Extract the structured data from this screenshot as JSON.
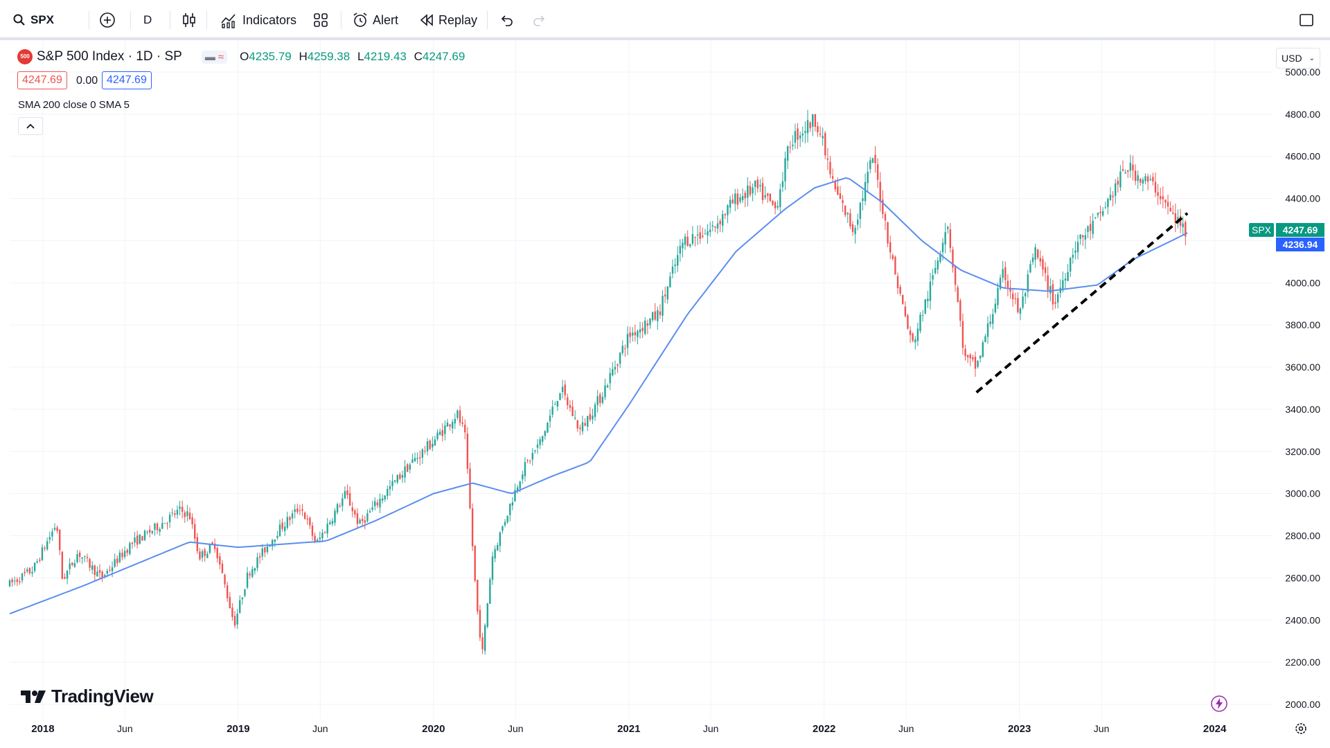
{
  "toolbar": {
    "symbol": "SPX",
    "interval": "D",
    "indicators_label": "Indicators",
    "alert_label": "Alert",
    "replay_label": "Replay"
  },
  "legend": {
    "title": "S&P 500 Index · 1D · SP",
    "badge": "500",
    "open_label": "O",
    "open": "4235.79",
    "high_label": "H",
    "high": "4259.38",
    "low_label": "L",
    "low": "4219.43",
    "close_label": "C",
    "close": "4247.69",
    "bid": "4247.69",
    "spread": "0.00",
    "ask": "4247.69",
    "indicator": "SMA 200 close 0 SMA 5"
  },
  "currency": "USD",
  "price_tags": {
    "symbol": "SPX",
    "last": "4247.69",
    "sma": "4236.94"
  },
  "branding": "TradingView",
  "colors": {
    "up": "#26a69a",
    "down": "#ef5350",
    "sma": "#5b8def",
    "trendline": "#000000",
    "price_tag_bg": "#089981",
    "sma_tag_bg": "#2962ff",
    "grid": "#f0f3fa",
    "accent_purple": "#9c27b0"
  },
  "chart_data": {
    "type": "line",
    "description_series": "candlestick",
    "y_ticks": [
      "5000.00",
      "4800.00",
      "4600.00",
      "4400.00",
      "4200.00",
      "4000.00",
      "3800.00",
      "3600.00",
      "3400.00",
      "3200.00",
      "3000.00",
      "2800.00",
      "2600.00",
      "2400.00",
      "2200.00",
      "2000.00"
    ],
    "ylim": [
      2000,
      5000
    ],
    "x_ticks": [
      {
        "label": "2018",
        "t": 2018.0,
        "bold": true
      },
      {
        "label": "Jun",
        "t": 2018.42,
        "bold": false
      },
      {
        "label": "2019",
        "t": 2019.0,
        "bold": true
      },
      {
        "label": "Jun",
        "t": 2019.42,
        "bold": false
      },
      {
        "label": "2020",
        "t": 2020.0,
        "bold": true
      },
      {
        "label": "Jun",
        "t": 2020.42,
        "bold": false
      },
      {
        "label": "2021",
        "t": 2021.0,
        "bold": true
      },
      {
        "label": "Jun",
        "t": 2021.42,
        "bold": false
      },
      {
        "label": "2022",
        "t": 2022.0,
        "bold": true
      },
      {
        "label": "Jun",
        "t": 2022.42,
        "bold": false
      },
      {
        "label": "2023",
        "t": 2023.0,
        "bold": true
      },
      {
        "label": "Jun",
        "t": 2023.42,
        "bold": false
      },
      {
        "label": "2024",
        "t": 2024.0,
        "bold": true
      }
    ],
    "xlim": [
      2017.83,
      2024.2
    ],
    "price_anchors": [
      [
        2017.83,
        2570
      ],
      [
        2017.95,
        2640
      ],
      [
        2018.07,
        2860
      ],
      [
        2018.1,
        2590
      ],
      [
        2018.18,
        2720
      ],
      [
        2018.3,
        2600
      ],
      [
        2018.45,
        2760
      ],
      [
        2018.55,
        2820
      ],
      [
        2018.7,
        2920
      ],
      [
        2018.75,
        2900
      ],
      [
        2018.8,
        2700
      ],
      [
        2018.88,
        2760
      ],
      [
        2018.98,
        2380
      ],
      [
        2019.05,
        2620
      ],
      [
        2019.2,
        2820
      ],
      [
        2019.32,
        2940
      ],
      [
        2019.4,
        2760
      ],
      [
        2019.55,
        3000
      ],
      [
        2019.62,
        2850
      ],
      [
        2019.75,
        3000
      ],
      [
        2019.88,
        3140
      ],
      [
        2020.0,
        3250
      ],
      [
        2020.12,
        3380
      ],
      [
        2020.16,
        3280
      ],
      [
        2020.22,
        2480
      ],
      [
        2020.25,
        2240
      ],
      [
        2020.3,
        2700
      ],
      [
        2020.45,
        3100
      ],
      [
        2020.55,
        3250
      ],
      [
        2020.65,
        3500
      ],
      [
        2020.75,
        3300
      ],
      [
        2020.85,
        3450
      ],
      [
        2021.0,
        3750
      ],
      [
        2021.15,
        3850
      ],
      [
        2021.28,
        4200
      ],
      [
        2021.42,
        4250
      ],
      [
        2021.55,
        4400
      ],
      [
        2021.65,
        4450
      ],
      [
        2021.75,
        4350
      ],
      [
        2021.83,
        4680
      ],
      [
        2021.96,
        4780
      ],
      [
        2022.05,
        4450
      ],
      [
        2022.15,
        4250
      ],
      [
        2022.25,
        4600
      ],
      [
        2022.35,
        4100
      ],
      [
        2022.45,
        3700
      ],
      [
        2022.55,
        4000
      ],
      [
        2022.63,
        4300
      ],
      [
        2022.72,
        3640
      ],
      [
        2022.78,
        3600
      ],
      [
        2022.92,
        4050
      ],
      [
        2023.0,
        3850
      ],
      [
        2023.08,
        4150
      ],
      [
        2023.18,
        3900
      ],
      [
        2023.28,
        4170
      ],
      [
        2023.4,
        4300
      ],
      [
        2023.55,
        4550
      ],
      [
        2023.62,
        4500
      ],
      [
        2023.7,
        4450
      ],
      [
        2023.78,
        4320
      ],
      [
        2023.85,
        4250
      ]
    ],
    "sma_anchors": [
      [
        2017.83,
        2430
      ],
      [
        2018.2,
        2560
      ],
      [
        2018.75,
        2770
      ],
      [
        2019.0,
        2745
      ],
      [
        2019.45,
        2775
      ],
      [
        2019.7,
        2870
      ],
      [
        2020.0,
        3000
      ],
      [
        2020.2,
        3050
      ],
      [
        2020.4,
        3000
      ],
      [
        2020.6,
        3080
      ],
      [
        2020.8,
        3150
      ],
      [
        2021.0,
        3420
      ],
      [
        2021.3,
        3850
      ],
      [
        2021.55,
        4150
      ],
      [
        2021.8,
        4350
      ],
      [
        2021.95,
        4450
      ],
      [
        2022.12,
        4500
      ],
      [
        2022.3,
        4380
      ],
      [
        2022.5,
        4200
      ],
      [
        2022.7,
        4060
      ],
      [
        2022.92,
        3975
      ],
      [
        2023.15,
        3960
      ],
      [
        2023.4,
        3990
      ],
      [
        2023.58,
        4110
      ],
      [
        2023.78,
        4200
      ],
      [
        2023.86,
        4237
      ]
    ],
    "trendline": {
      "x1": 2022.78,
      "y1": 3480,
      "x2": 2023.86,
      "y2": 4330
    }
  }
}
